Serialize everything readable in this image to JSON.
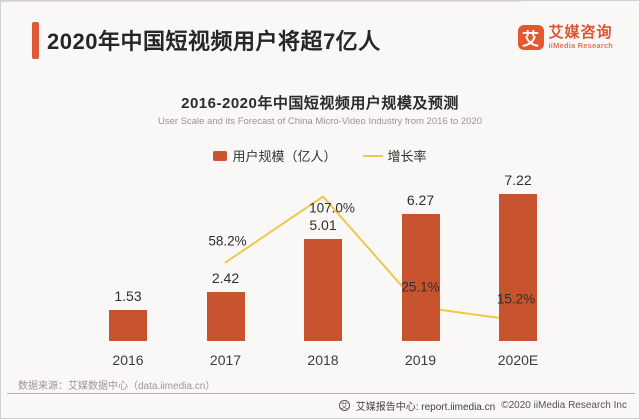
{
  "header": {
    "title": "2020年中国短视频用户将超7亿人",
    "logo": {
      "glyph": "艾",
      "name_cn": "艾媒咨询",
      "name_en": "iiMedia Research"
    }
  },
  "chart_data": {
    "type": "bar",
    "title": "2016-2020年中国短视频用户规模及预测",
    "subtitle": "User Scale and its Forecast of China Micro-Video Industry from 2016 to 2020",
    "categories": [
      "2016",
      "2017",
      "2018",
      "2019",
      "2020E"
    ],
    "series": [
      {
        "name": "用户规模（亿人）",
        "type": "bar",
        "color": "#c8532f",
        "values": [
          1.53,
          2.42,
          5.01,
          6.27,
          7.22
        ],
        "data_labels": [
          "1.53",
          "2.42",
          "5.01",
          "6.27",
          "7.22"
        ]
      },
      {
        "name": "增长率",
        "type": "line",
        "color": "#ecc84d",
        "values": [
          null,
          58.2,
          107.0,
          25.1,
          15.2
        ],
        "data_labels": [
          null,
          "58.2%",
          "107.0%",
          "25.1%",
          "15.2%"
        ]
      }
    ],
    "ylim_bar": [
      0,
      8.5
    ],
    "ylim_line_pct": [
      0,
      130
    ],
    "grid": false,
    "legend_position": "top"
  },
  "footer": {
    "source": "数据来源：艾媒数据中心（data.iimedia.cn）",
    "report_logo_glyph": "艾",
    "report_center": "艾媒报告中心: report.iimedia.cn",
    "copyright": "©2020  iiMedia Research  Inc"
  },
  "colors": {
    "accent": "#e0593a",
    "bar": "#c8532f",
    "line": "#ecc84d",
    "background": "#faf8f7"
  }
}
